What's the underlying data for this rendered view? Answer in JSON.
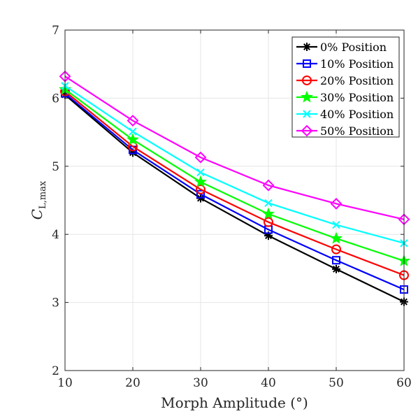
{
  "chart_data": {
    "type": "line",
    "x": [
      10,
      20,
      30,
      40,
      50,
      60
    ],
    "xlabel": "Morph Amplitude (°)",
    "ylabel": {
      "base": "C",
      "subscript": "L,max"
    },
    "xlim": [
      10,
      60
    ],
    "ylim": [
      2,
      7
    ],
    "xticks": [
      "10",
      "20",
      "30",
      "40",
      "50",
      "60"
    ],
    "yticks": [
      "2",
      "3",
      "4",
      "5",
      "6",
      "7"
    ],
    "grid": true,
    "legend_position": "top-right",
    "series": [
      {
        "name": "0% Position",
        "color": "#000000",
        "marker": "asterisk",
        "values": [
          6.05,
          5.2,
          4.53,
          3.98,
          3.49,
          3.01
        ]
      },
      {
        "name": "10% Position",
        "color": "#0000ff",
        "marker": "square",
        "values": [
          6.07,
          5.24,
          4.59,
          4.07,
          3.62,
          3.19
        ]
      },
      {
        "name": "20% Position",
        "color": "#ff0000",
        "marker": "circle",
        "values": [
          6.1,
          5.29,
          4.66,
          4.18,
          3.78,
          3.4
        ]
      },
      {
        "name": "30% Position",
        "color": "#00ff00",
        "marker": "star",
        "values": [
          6.13,
          5.39,
          4.77,
          4.3,
          3.94,
          3.61
        ]
      },
      {
        "name": "40% Position",
        "color": "#00ffff",
        "marker": "x",
        "values": [
          6.18,
          5.51,
          4.91,
          4.46,
          4.14,
          3.87
        ]
      },
      {
        "name": "50% Position",
        "color": "#ff00ff",
        "marker": "diamond",
        "values": [
          6.32,
          5.67,
          5.13,
          4.72,
          4.45,
          4.22
        ]
      }
    ]
  }
}
